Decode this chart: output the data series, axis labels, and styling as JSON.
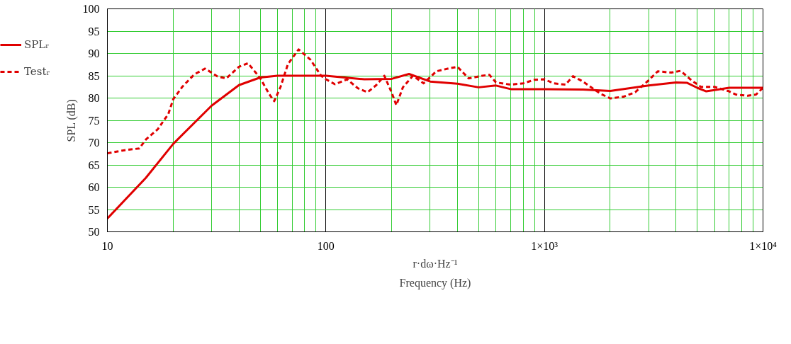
{
  "chart_data": {
    "type": "line",
    "xlabel": "r·dω·Hz⁻¹",
    "ylabel": "SPL (dB)",
    "annotations": [
      "Frequency (Hz)"
    ],
    "log": "x",
    "grid": true,
    "legend": "left",
    "marker": "none",
    "xlim": [
      10,
      10000
    ],
    "xticks": [
      10,
      100,
      {
        "value": 1000,
        "label": "1×10³"
      },
      {
        "value": 10000,
        "label": "1×10⁴"
      }
    ],
    "ylim": [
      50,
      100
    ],
    "yticks": [
      50,
      55,
      60,
      65,
      70,
      75,
      80,
      85,
      90,
      95,
      100
    ],
    "series": [
      {
        "name": "SPLᵣ",
        "color": "#e00000",
        "line_style": "solid",
        "x": [
          10,
          15,
          20,
          30,
          40,
          50,
          60,
          100,
          150,
          200,
          240,
          300,
          400,
          500,
          600,
          700,
          1000,
          1500,
          2000,
          3000,
          4000,
          4500,
          5000,
          5500,
          7000,
          10000
        ],
        "values": [
          53,
          62.1,
          69.7,
          78.3,
          82.9,
          84.6,
          85,
          85,
          84.2,
          84.3,
          85.4,
          83.7,
          83.2,
          82.4,
          82.8,
          82,
          82,
          81.9,
          81.6,
          82.8,
          83.5,
          83.4,
          82.3,
          81.5,
          82.3,
          82.3
        ]
      },
      {
        "name": "Testᵣ",
        "color": "#e00000",
        "line_style": "dashed",
        "x": [
          10,
          12,
          14,
          15,
          17,
          19,
          20,
          22,
          25,
          28,
          32,
          35,
          40,
          44,
          50,
          55,
          58,
          62,
          67,
          75,
          85,
          95,
          100,
          110,
          125,
          140,
          155,
          170,
          185,
          200,
          210,
          225,
          250,
          280,
          320,
          370,
          400,
          450,
          520,
          560,
          600,
          700,
          800,
          900,
          1000,
          1100,
          1250,
          1350,
          1500,
          1800,
          2000,
          2300,
          2600,
          3000,
          3300,
          3800,
          4200,
          4700,
          5200,
          6000,
          7000,
          7500,
          8500,
          9300,
          10000
        ],
        "values": [
          67.6,
          68.3,
          68.7,
          70.7,
          73,
          76.4,
          79.7,
          82.5,
          85.3,
          86.6,
          84.8,
          84.4,
          87,
          87.8,
          84.5,
          80.9,
          79.3,
          82.5,
          87.6,
          90.9,
          88.6,
          85,
          84.2,
          83.1,
          84.2,
          82.2,
          81.3,
          82.9,
          85,
          81.2,
          78.4,
          82.4,
          85,
          83.3,
          86,
          86.7,
          87,
          84.4,
          85,
          85.2,
          83.5,
          83,
          83.3,
          84.1,
          84.2,
          83.3,
          83,
          84.9,
          83.7,
          81,
          79.9,
          80.3,
          81.3,
          84,
          86,
          85.7,
          86.1,
          84,
          82.5,
          82.5,
          81.5,
          80.8,
          80.5,
          80.8,
          82.3
        ]
      }
    ]
  }
}
